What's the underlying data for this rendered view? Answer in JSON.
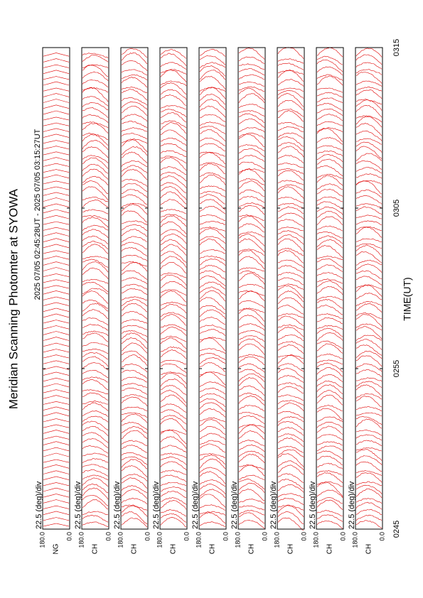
{
  "chart_data": {
    "type": "stacked-scan",
    "title": "Meridian Scanning Photomter at SYOWA",
    "subtitle": "2025 07/05 02:45:28UT - 2025 07/05 03:15:27UT",
    "xlabel": "TIME(UT)",
    "xlim": [
      0,
      30
    ],
    "xticks": [
      {
        "value": 0,
        "label": "0245"
      },
      {
        "value": 10,
        "label": "0255"
      },
      {
        "value": 20,
        "label": "0305"
      },
      {
        "value": 30,
        "label": "0315"
      }
    ],
    "ylim": [
      0,
      180
    ],
    "yticks": [
      {
        "value": 180,
        "label": "180.0"
      },
      {
        "value": 0,
        "label": "0.0"
      }
    ],
    "color": "#e00000",
    "panels": [
      {
        "channel": "NG",
        "scale": "22.5 (deg)/div"
      },
      {
        "channel": "CH",
        "scale": "22.5 (deg)/div"
      },
      {
        "channel": "CH",
        "scale": "22.5 (deg)/div"
      },
      {
        "channel": "CH",
        "scale": "22.5 (deg)/div"
      },
      {
        "channel": "CH",
        "scale": "22.5 (deg)/div"
      },
      {
        "channel": "CH",
        "scale": "22.5 (deg)/div"
      },
      {
        "channel": "CH",
        "scale": "22.5 (deg)/div"
      },
      {
        "channel": "CH",
        "scale": "22.5 (deg)/div"
      },
      {
        "channel": "CH",
        "scale": "22.5 (deg)/div"
      }
    ]
  }
}
